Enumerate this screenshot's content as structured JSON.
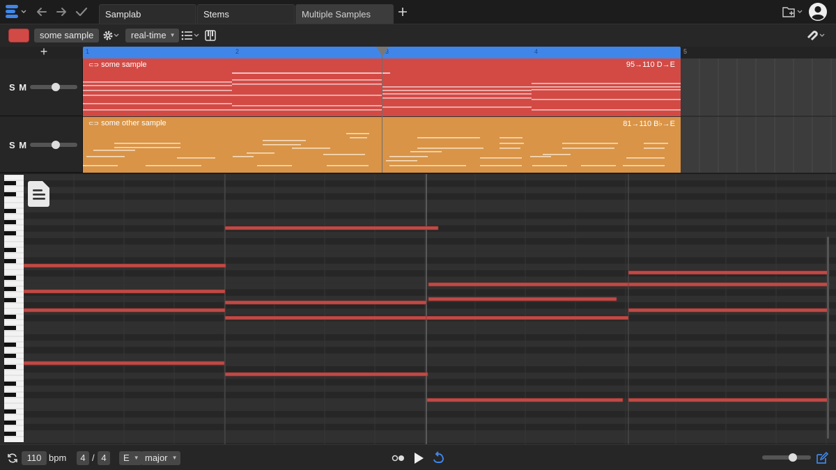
{
  "tabs": [
    {
      "label": "Samplab"
    },
    {
      "label": "Stems"
    },
    {
      "label": "Multiple Samples",
      "active": true
    }
  ],
  "toolbar": {
    "color": "#d14a45",
    "sample_name": "some sample",
    "mode": "real-time",
    "icons": [
      "settings-icon",
      "list-icon",
      "piano-keys-icon",
      "magnet-icon"
    ]
  },
  "ruler": {
    "bars": [
      "1",
      "2",
      "3",
      "4",
      "5"
    ]
  },
  "tracks": [
    {
      "solo": "S",
      "mute": "M",
      "volume": 0.55
    },
    {
      "solo": "S",
      "mute": "M",
      "volume": 0.55
    }
  ],
  "clips": [
    {
      "title": "some sample",
      "info": "95→110 D→E",
      "color": "#d34a45"
    },
    {
      "title": "some other sample",
      "info": "81→110 B♭→E",
      "color": "#d99447"
    }
  ],
  "bottom": {
    "bpm": "110",
    "bpm_label": "bpm",
    "sig_num": "4",
    "sig_slash": "/",
    "sig_den": "4",
    "key": "E",
    "scale": "major",
    "zoom": 0.65
  }
}
